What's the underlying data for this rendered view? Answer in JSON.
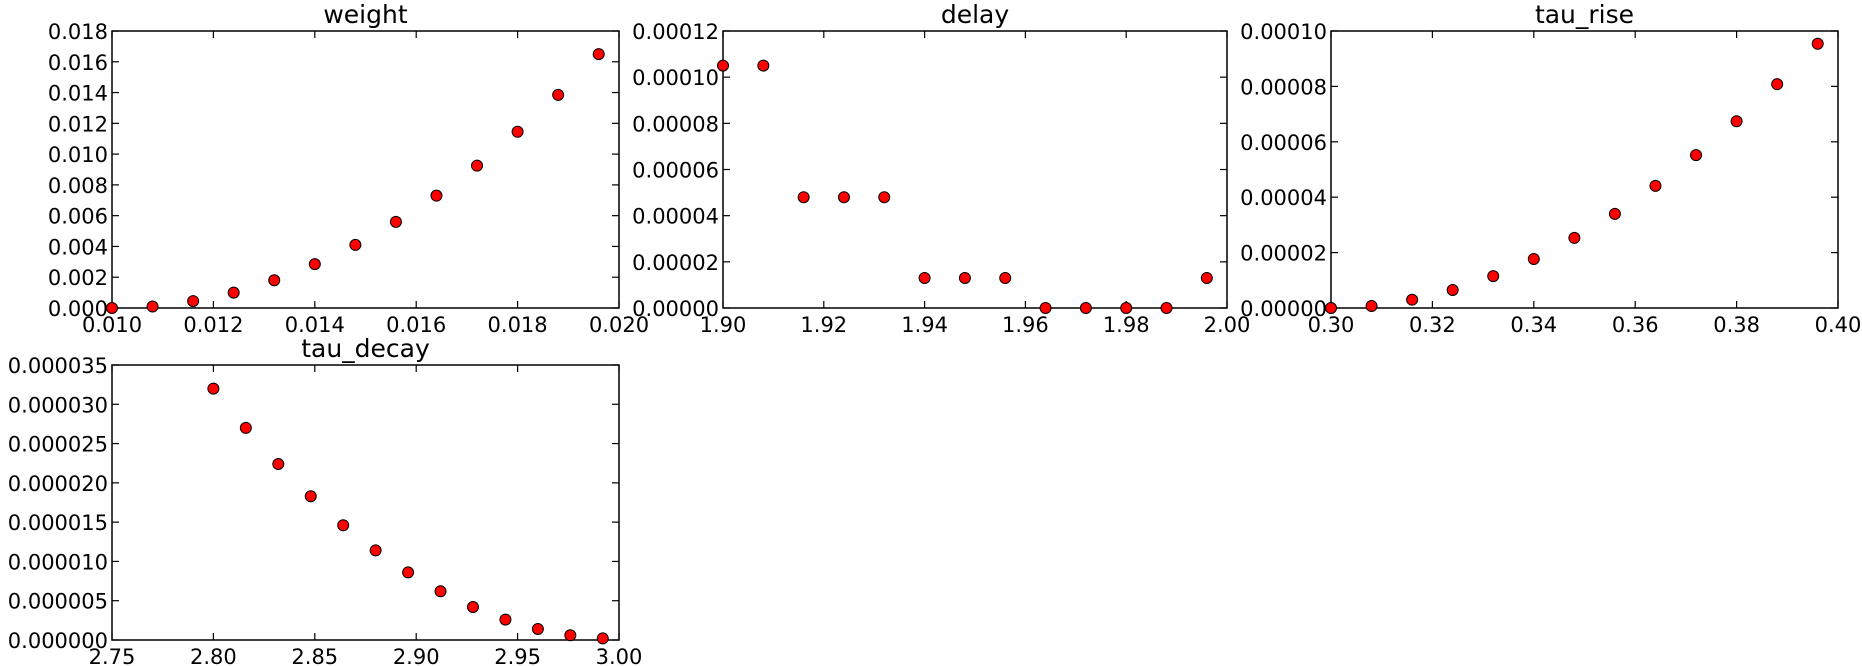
{
  "marker_fill": "#ff0000",
  "marker_edge": "#000000",
  "chart_data": [
    {
      "type": "scatter",
      "title": "weight",
      "xlim": [
        0.01,
        0.02
      ],
      "ylim": [
        0.0,
        0.018
      ],
      "xticks": [
        "0.010",
        "0.012",
        "0.014",
        "0.016",
        "0.018",
        "0.020"
      ],
      "yticks": [
        "0.000",
        "0.002",
        "0.004",
        "0.006",
        "0.008",
        "0.010",
        "0.012",
        "0.014",
        "0.016",
        "0.018"
      ],
      "x": [
        0.01,
        0.0108,
        0.0116,
        0.0124,
        0.0132,
        0.014,
        0.0148,
        0.0156,
        0.0164,
        0.0172,
        0.018,
        0.0188,
        0.0196
      ],
      "y": [
        0.0,
        0.0001,
        0.00045,
        0.001,
        0.0018,
        0.00285,
        0.0041,
        0.0056,
        0.0073,
        0.00925,
        0.01145,
        0.01385,
        0.0165
      ]
    },
    {
      "type": "scatter",
      "title": "delay",
      "xlim": [
        1.9,
        2.0
      ],
      "ylim": [
        0.0,
        0.00012
      ],
      "xticks": [
        "1.90",
        "1.92",
        "1.94",
        "1.96",
        "1.98",
        "2.00"
      ],
      "yticks": [
        "0.00000",
        "0.00002",
        "0.00004",
        "0.00006",
        "0.00008",
        "0.00010",
        "0.00012"
      ],
      "x": [
        1.9,
        1.908,
        1.916,
        1.924,
        1.932,
        1.94,
        1.948,
        1.956,
        1.964,
        1.972,
        1.98,
        1.988,
        1.996
      ],
      "y": [
        0.000105,
        0.000105,
        4.8e-05,
        4.8e-05,
        4.8e-05,
        1.3e-05,
        1.3e-05,
        1.3e-05,
        0.0,
        0.0,
        0.0,
        0.0,
        1.3e-05
      ]
    },
    {
      "type": "scatter",
      "title": "tau_rise",
      "xlim": [
        0.3,
        0.4
      ],
      "ylim": [
        0.0,
        0.0001
      ],
      "xticks": [
        "0.30",
        "0.32",
        "0.34",
        "0.36",
        "0.38",
        "0.40"
      ],
      "yticks": [
        "0.00000",
        "0.00002",
        "0.00004",
        "0.00006",
        "0.00008",
        "0.00010"
      ],
      "x": [
        0.3,
        0.308,
        0.316,
        0.324,
        0.332,
        0.34,
        0.348,
        0.356,
        0.364,
        0.372,
        0.38,
        0.388,
        0.396
      ],
      "y": [
        0.0,
        7e-07,
        3e-06,
        6.5e-06,
        1.15e-05,
        1.77e-05,
        2.53e-05,
        3.4e-05,
        4.41e-05,
        5.52e-05,
        6.74e-05,
        8.08e-05,
        9.54e-05
      ]
    },
    {
      "type": "scatter",
      "title": "tau_decay",
      "xlim": [
        2.75,
        3.0
      ],
      "ylim": [
        0.0,
        3.5e-05
      ],
      "xticks": [
        "2.75",
        "2.80",
        "2.85",
        "2.90",
        "2.95",
        "3.00"
      ],
      "yticks": [
        "0.000000",
        "0.000005",
        "0.000010",
        "0.000015",
        "0.000020",
        "0.000025",
        "0.000030",
        "0.000035"
      ],
      "x": [
        2.8,
        2.816,
        2.832,
        2.848,
        2.864,
        2.88,
        2.896,
        2.912,
        2.928,
        2.944,
        2.96,
        2.976,
        2.992
      ],
      "y": [
        3.2e-05,
        2.7e-05,
        2.24e-05,
        1.83e-05,
        1.46e-05,
        1.14e-05,
        8.6e-06,
        6.2e-06,
        4.2e-06,
        2.6e-06,
        1.4e-06,
        6e-07,
        2e-07
      ]
    }
  ]
}
